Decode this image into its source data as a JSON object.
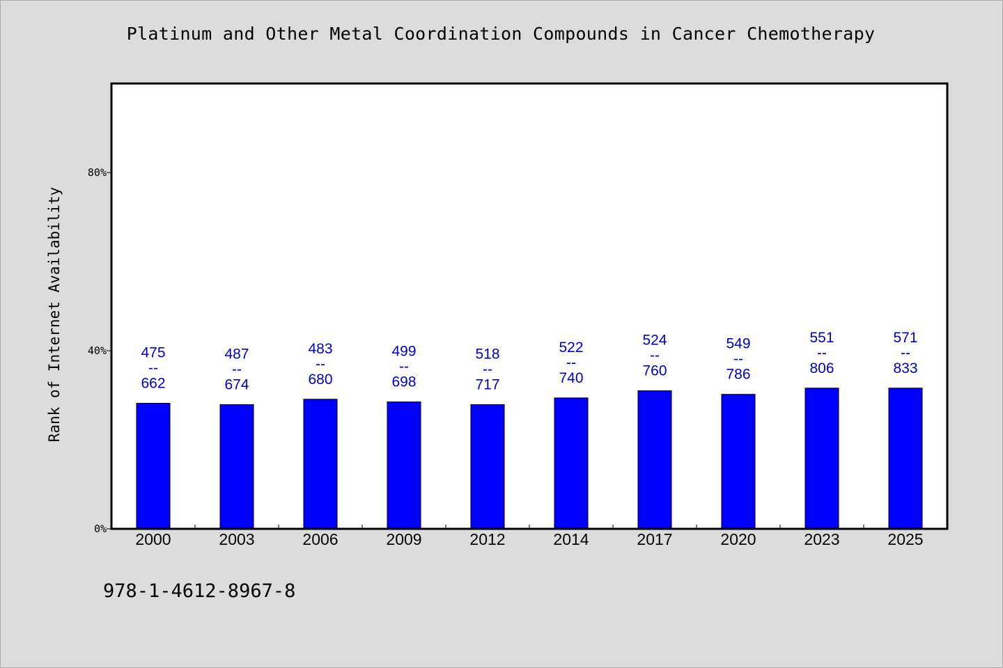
{
  "title": "Platinum and Other Metal Coordination Compounds in Cancer Chemotherapy",
  "footer_text": "978-1-4612-8967-8",
  "colors": {
    "background": "#dcdcdc",
    "plot_background": "#ffffff",
    "bar": "#0000ff",
    "data_label": "#0000cc"
  },
  "chart_data": {
    "type": "bar",
    "title": "Platinum and Other Metal Coordination Compounds in Cancer Chemotherapy",
    "xlabel": "",
    "ylabel": "Rank of Internet Availability",
    "ylim": [
      0,
      1
    ],
    "yticks": [
      {
        "value": 0,
        "label": "0%"
      },
      {
        "value": 0.4,
        "label": "40%"
      },
      {
        "value": 0.8,
        "label": "80%"
      }
    ],
    "categories": [
      "2000",
      "2003",
      "2006",
      "2009",
      "2012",
      "2014",
      "2017",
      "2020",
      "2023",
      "2025"
    ],
    "values": [
      0.282,
      0.279,
      0.291,
      0.285,
      0.279,
      0.294,
      0.31,
      0.302,
      0.316,
      0.316
    ],
    "data_labels": [
      {
        "low": "475",
        "sep": "--",
        "high": "662"
      },
      {
        "low": "487",
        "sep": "--",
        "high": "674"
      },
      {
        "low": "483",
        "sep": "--",
        "high": "680"
      },
      {
        "low": "499",
        "sep": "--",
        "high": "698"
      },
      {
        "low": "518",
        "sep": "--",
        "high": "717"
      },
      {
        "low": "522",
        "sep": "--",
        "high": "740"
      },
      {
        "low": "524",
        "sep": "--",
        "high": "760"
      },
      {
        "low": "549",
        "sep": "--",
        "high": "786"
      },
      {
        "low": "551",
        "sep": "--",
        "high": "806"
      },
      {
        "low": "571",
        "sep": "--",
        "high": "833"
      }
    ],
    "grid": false,
    "legend": "none"
  }
}
